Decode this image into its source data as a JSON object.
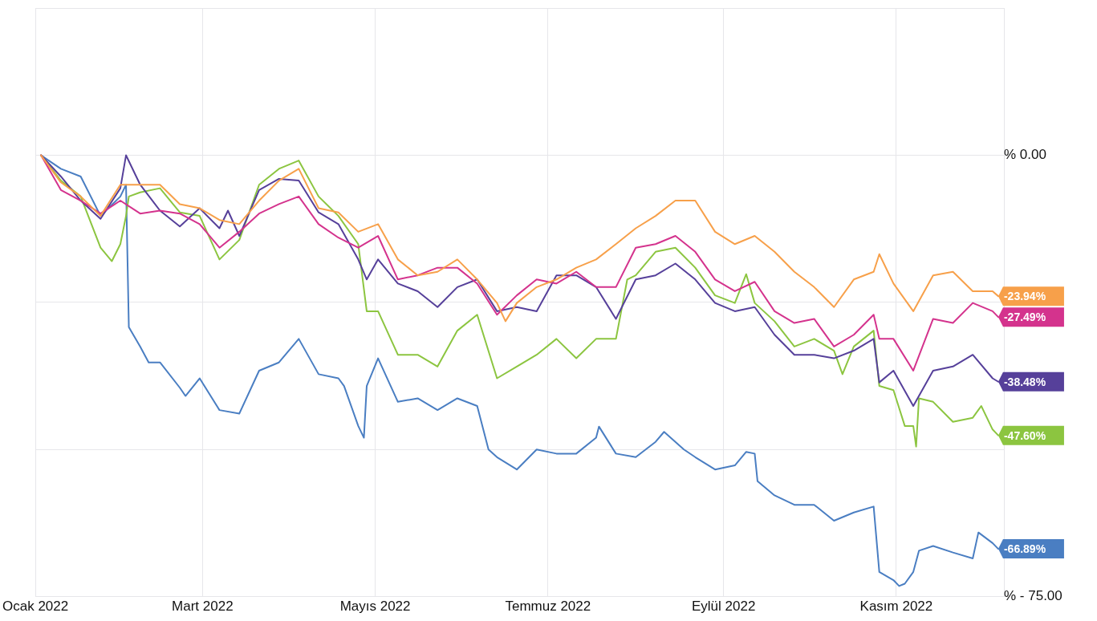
{
  "chart_data": {
    "type": "line",
    "xlim": [
      "2022-01-01",
      "2022-12-09"
    ],
    "ylim": [
      -75,
      25
    ],
    "xticks": [
      {
        "value": "2022-01-01",
        "label": "Ocak 2022"
      },
      {
        "value": "2022-03-01",
        "label": "Mart 2022"
      },
      {
        "value": "2022-05-01",
        "label": "Mayıs 2022"
      },
      {
        "value": "2022-07-01",
        "label": "Temmuz 2022"
      },
      {
        "value": "2022-09-01",
        "label": "Eylül 2022"
      },
      {
        "value": "2022-11-01",
        "label": "Kasım 2022"
      }
    ],
    "yticks": [
      {
        "value": 25,
        "label": null
      },
      {
        "value": 0,
        "label": "% 0.00"
      },
      {
        "value": -25,
        "label": null
      },
      {
        "value": -50,
        "label": null
      },
      {
        "value": -75,
        "label": "% - 75.00"
      }
    ],
    "grid": true,
    "legend": false,
    "marker": "none",
    "line_style": "solid",
    "series": [
      {
        "color": "#f7a04a",
        "x": [
          "2022-01-03",
          "2022-01-10",
          "2022-01-17",
          "2022-01-24",
          "2022-01-31",
          "2022-02-07",
          "2022-02-14",
          "2022-02-21",
          "2022-02-28",
          "2022-03-07",
          "2022-03-14",
          "2022-03-21",
          "2022-03-28",
          "2022-04-04",
          "2022-04-11",
          "2022-04-18",
          "2022-04-25",
          "2022-05-02",
          "2022-05-09",
          "2022-05-16",
          "2022-05-23",
          "2022-05-30",
          "2022-06-06",
          "2022-06-13",
          "2022-06-16",
          "2022-06-20",
          "2022-06-27",
          "2022-07-04",
          "2022-07-11",
          "2022-07-18",
          "2022-07-25",
          "2022-08-01",
          "2022-08-08",
          "2022-08-15",
          "2022-08-22",
          "2022-08-29",
          "2022-09-05",
          "2022-09-12",
          "2022-09-19",
          "2022-09-26",
          "2022-10-03",
          "2022-10-10",
          "2022-10-17",
          "2022-10-24",
          "2022-10-26",
          "2022-10-31",
          "2022-11-07",
          "2022-11-14",
          "2022-11-21",
          "2022-11-28",
          "2022-12-05",
          "2022-12-07"
        ],
        "values": [
          0,
          -4.6,
          -7.0,
          -10.3,
          -5.0,
          -5.0,
          -5.0,
          -8.3,
          -9.0,
          -11.0,
          -11.7,
          -7.7,
          -4.3,
          -2.3,
          -9.0,
          -9.7,
          -13.0,
          -11.7,
          -17.7,
          -20.4,
          -19.8,
          -17.7,
          -21.1,
          -25.1,
          -28.2,
          -25.1,
          -22.4,
          -21.1,
          -19.1,
          -17.7,
          -15.1,
          -12.4,
          -10.3,
          -7.7,
          -7.7,
          -13.0,
          -15.1,
          -13.7,
          -16.4,
          -19.8,
          -22.4,
          -25.8,
          -21.1,
          -19.8,
          -16.8,
          -21.8,
          -26.5,
          -20.4,
          -19.8,
          -23.1,
          -23.1,
          -23.94
        ],
        "value_labels": [
          null,
          null,
          null,
          null,
          null,
          null,
          null,
          null,
          null,
          null,
          null,
          null,
          null,
          null,
          null,
          null,
          null,
          null,
          null,
          null,
          null,
          null,
          null,
          null,
          null,
          null,
          null,
          null,
          null,
          null,
          null,
          null,
          null,
          null,
          null,
          null,
          null,
          null,
          null,
          null,
          null,
          null,
          null,
          null,
          null,
          null,
          null,
          null,
          null,
          null,
          null,
          "-23.94%"
        ]
      },
      {
        "color": "#d4338d",
        "x": [
          "2022-01-03",
          "2022-01-10",
          "2022-01-17",
          "2022-01-24",
          "2022-01-31",
          "2022-02-07",
          "2022-02-14",
          "2022-02-21",
          "2022-02-28",
          "2022-03-07",
          "2022-03-14",
          "2022-03-21",
          "2022-03-28",
          "2022-04-04",
          "2022-04-11",
          "2022-04-18",
          "2022-04-25",
          "2022-05-02",
          "2022-05-09",
          "2022-05-16",
          "2022-05-23",
          "2022-05-30",
          "2022-06-06",
          "2022-06-13",
          "2022-06-20",
          "2022-06-27",
          "2022-07-04",
          "2022-07-11",
          "2022-07-18",
          "2022-07-25",
          "2022-08-01",
          "2022-08-08",
          "2022-08-15",
          "2022-08-22",
          "2022-08-29",
          "2022-09-05",
          "2022-09-12",
          "2022-09-19",
          "2022-09-26",
          "2022-10-03",
          "2022-10-10",
          "2022-10-17",
          "2022-10-24",
          "2022-10-26",
          "2022-10-31",
          "2022-11-07",
          "2022-11-14",
          "2022-11-21",
          "2022-11-28",
          "2022-12-05",
          "2022-12-07"
        ],
        "values": [
          0,
          -5.9,
          -7.7,
          -9.9,
          -7.7,
          -9.9,
          -9.4,
          -9.9,
          -11.7,
          -15.7,
          -13.0,
          -9.9,
          -8.3,
          -7.0,
          -11.7,
          -14.0,
          -15.7,
          -13.7,
          -21.1,
          -20.4,
          -19.1,
          -19.1,
          -21.8,
          -27.1,
          -23.8,
          -21.1,
          -21.8,
          -19.8,
          -22.4,
          -22.4,
          -15.7,
          -15.1,
          -13.7,
          -16.4,
          -21.1,
          -23.1,
          -21.5,
          -26.5,
          -28.5,
          -27.8,
          -32.5,
          -30.5,
          -27.1,
          -31.2,
          -31.2,
          -36.6,
          -27.8,
          -28.5,
          -25.1,
          -26.5,
          -27.49
        ],
        "value_labels": [
          null,
          null,
          null,
          null,
          null,
          null,
          null,
          null,
          null,
          null,
          null,
          null,
          null,
          null,
          null,
          null,
          null,
          null,
          null,
          null,
          null,
          null,
          null,
          null,
          null,
          null,
          null,
          null,
          null,
          null,
          null,
          null,
          null,
          null,
          null,
          null,
          null,
          null,
          null,
          null,
          null,
          null,
          null,
          null,
          null,
          null,
          null,
          null,
          null,
          null,
          "-27.49%"
        ]
      },
      {
        "color": "#56409a",
        "x": [
          "2022-01-03",
          "2022-01-10",
          "2022-01-17",
          "2022-01-24",
          "2022-01-31",
          "2022-02-02",
          "2022-02-07",
          "2022-02-14",
          "2022-02-21",
          "2022-02-28",
          "2022-03-07",
          "2022-03-10",
          "2022-03-14",
          "2022-03-21",
          "2022-03-28",
          "2022-04-04",
          "2022-04-11",
          "2022-04-18",
          "2022-04-25",
          "2022-04-28",
          "2022-05-02",
          "2022-05-09",
          "2022-05-16",
          "2022-05-23",
          "2022-05-30",
          "2022-06-06",
          "2022-06-13",
          "2022-06-20",
          "2022-06-27",
          "2022-07-04",
          "2022-07-11",
          "2022-07-18",
          "2022-07-25",
          "2022-08-01",
          "2022-08-08",
          "2022-08-15",
          "2022-08-22",
          "2022-08-29",
          "2022-09-05",
          "2022-09-12",
          "2022-09-19",
          "2022-09-26",
          "2022-10-03",
          "2022-10-10",
          "2022-10-17",
          "2022-10-24",
          "2022-10-26",
          "2022-10-31",
          "2022-11-07",
          "2022-11-14",
          "2022-11-21",
          "2022-11-28",
          "2022-12-05",
          "2022-12-07"
        ],
        "values": [
          0,
          -3.6,
          -7.7,
          -10.8,
          -5.6,
          0,
          -5.0,
          -9.4,
          -12.1,
          -9.0,
          -12.4,
          -9.4,
          -13.7,
          -5.9,
          -4.0,
          -4.3,
          -9.7,
          -11.7,
          -17.7,
          -21.1,
          -17.7,
          -21.8,
          -23.1,
          -25.8,
          -22.4,
          -21.1,
          -26.5,
          -25.8,
          -26.5,
          -20.4,
          -20.4,
          -22.4,
          -27.8,
          -21.1,
          -20.4,
          -18.4,
          -21.1,
          -25.1,
          -26.5,
          -25.8,
          -30.5,
          -33.9,
          -33.9,
          -34.5,
          -33.2,
          -31.2,
          -38.6,
          -36.6,
          -42.6,
          -36.6,
          -35.9,
          -33.9,
          -37.9,
          -38.48
        ],
        "value_labels": [
          null,
          null,
          null,
          null,
          null,
          null,
          null,
          null,
          null,
          null,
          null,
          null,
          null,
          null,
          null,
          null,
          null,
          null,
          null,
          null,
          null,
          null,
          null,
          null,
          null,
          null,
          null,
          null,
          null,
          null,
          null,
          null,
          null,
          null,
          null,
          null,
          null,
          null,
          null,
          null,
          null,
          null,
          null,
          null,
          null,
          null,
          null,
          null,
          null,
          null,
          null,
          null,
          null,
          "-38.48%"
        ]
      },
      {
        "color": "#8cc540",
        "x": [
          "2022-01-03",
          "2022-01-10",
          "2022-01-17",
          "2022-01-24",
          "2022-01-28",
          "2022-01-31",
          "2022-02-02",
          "2022-02-03",
          "2022-02-07",
          "2022-02-14",
          "2022-02-21",
          "2022-02-28",
          "2022-03-07",
          "2022-03-14",
          "2022-03-21",
          "2022-03-28",
          "2022-04-04",
          "2022-04-11",
          "2022-04-18",
          "2022-04-25",
          "2022-04-28",
          "2022-05-02",
          "2022-05-09",
          "2022-05-16",
          "2022-05-23",
          "2022-05-30",
          "2022-06-06",
          "2022-06-13",
          "2022-06-20",
          "2022-06-27",
          "2022-07-04",
          "2022-07-11",
          "2022-07-18",
          "2022-07-25",
          "2022-07-29",
          "2022-08-01",
          "2022-08-08",
          "2022-08-15",
          "2022-08-22",
          "2022-08-29",
          "2022-09-05",
          "2022-09-09",
          "2022-09-12",
          "2022-09-19",
          "2022-09-26",
          "2022-10-03",
          "2022-10-10",
          "2022-10-13",
          "2022-10-17",
          "2022-10-24",
          "2022-10-26",
          "2022-10-31",
          "2022-11-04",
          "2022-11-07",
          "2022-11-08",
          "2022-11-09",
          "2022-11-14",
          "2022-11-21",
          "2022-11-28",
          "2022-12-01",
          "2022-12-05",
          "2022-12-07"
        ],
        "values": [
          0,
          -4.3,
          -7.0,
          -15.7,
          -18.0,
          -15.1,
          -10.3,
          -7.0,
          -6.3,
          -5.6,
          -9.7,
          -10.3,
          -17.7,
          -14.4,
          -5.0,
          -2.3,
          -0.9,
          -7.0,
          -10.3,
          -15.1,
          -26.5,
          -26.5,
          -33.9,
          -33.9,
          -35.9,
          -29.8,
          -27.1,
          -37.9,
          -35.9,
          -33.9,
          -31.2,
          -34.5,
          -31.2,
          -31.2,
          -21.1,
          -20.4,
          -16.4,
          -15.7,
          -19.1,
          -23.8,
          -25.1,
          -20.2,
          -25.1,
          -28.2,
          -32.5,
          -31.2,
          -33.2,
          -37.2,
          -32.5,
          -29.8,
          -39.2,
          -39.9,
          -46.0,
          -46.0,
          -49.5,
          -41.3,
          -41.9,
          -45.3,
          -44.6,
          -42.6,
          -46.6,
          -47.6
        ],
        "value_labels": [
          null,
          null,
          null,
          null,
          null,
          null,
          null,
          null,
          null,
          null,
          null,
          null,
          null,
          null,
          null,
          null,
          null,
          null,
          null,
          null,
          null,
          null,
          null,
          null,
          null,
          null,
          null,
          null,
          null,
          null,
          null,
          null,
          null,
          null,
          null,
          null,
          null,
          null,
          null,
          null,
          null,
          null,
          null,
          null,
          null,
          null,
          null,
          null,
          null,
          null,
          null,
          null,
          null,
          null,
          null,
          null,
          null,
          null,
          null,
          null,
          null,
          "-47.60%"
        ]
      },
      {
        "color": "#4a7ec2",
        "x": [
          "2022-01-03",
          "2022-01-10",
          "2022-01-17",
          "2022-01-24",
          "2022-01-31",
          "2022-02-02",
          "2022-02-03",
          "2022-02-07",
          "2022-02-10",
          "2022-02-14",
          "2022-02-21",
          "2022-02-23",
          "2022-02-28",
          "2022-03-07",
          "2022-03-14",
          "2022-03-21",
          "2022-03-28",
          "2022-04-04",
          "2022-04-11",
          "2022-04-18",
          "2022-04-20",
          "2022-04-25",
          "2022-04-27",
          "2022-04-28",
          "2022-05-02",
          "2022-05-09",
          "2022-05-16",
          "2022-05-23",
          "2022-05-30",
          "2022-06-06",
          "2022-06-10",
          "2022-06-13",
          "2022-06-20",
          "2022-06-27",
          "2022-07-04",
          "2022-07-11",
          "2022-07-18",
          "2022-07-19",
          "2022-07-25",
          "2022-08-01",
          "2022-08-08",
          "2022-08-11",
          "2022-08-18",
          "2022-08-22",
          "2022-08-29",
          "2022-09-05",
          "2022-09-09",
          "2022-09-12",
          "2022-09-13",
          "2022-09-19",
          "2022-09-26",
          "2022-10-03",
          "2022-10-10",
          "2022-10-17",
          "2022-10-24",
          "2022-10-26",
          "2022-10-31",
          "2022-11-02",
          "2022-11-04",
          "2022-11-07",
          "2022-11-09",
          "2022-11-14",
          "2022-11-21",
          "2022-11-28",
          "2022-11-30",
          "2022-12-05",
          "2022-12-07"
        ],
        "values": [
          0,
          -2.3,
          -3.6,
          -10.3,
          -7.0,
          -5.0,
          -29.2,
          -32.5,
          -35.2,
          -35.2,
          -39.5,
          -40.9,
          -37.9,
          -43.3,
          -43.9,
          -36.6,
          -35.2,
          -31.2,
          -37.2,
          -37.9,
          -39.2,
          -46.0,
          -48.0,
          -39.2,
          -34.5,
          -41.9,
          -41.3,
          -43.3,
          -41.3,
          -42.6,
          -50.0,
          -51.3,
          -53.4,
          -50.0,
          -50.7,
          -50.7,
          -48.0,
          -46.1,
          -50.7,
          -51.3,
          -48.7,
          -47.0,
          -50.0,
          -51.3,
          -53.4,
          -52.7,
          -50.4,
          -50.7,
          -55.4,
          -57.8,
          -59.4,
          -59.4,
          -62.1,
          -60.7,
          -59.7,
          -70.8,
          -72.2,
          -73.2,
          -72.8,
          -70.8,
          -67.2,
          -66.4,
          -67.5,
          -68.5,
          -64.1,
          -65.9,
          -66.89
        ],
        "value_labels": [
          null,
          null,
          null,
          null,
          null,
          null,
          null,
          null,
          null,
          null,
          null,
          null,
          null,
          null,
          null,
          null,
          null,
          null,
          null,
          null,
          null,
          null,
          null,
          null,
          null,
          null,
          null,
          null,
          null,
          null,
          null,
          null,
          null,
          null,
          null,
          null,
          null,
          null,
          null,
          null,
          null,
          null,
          null,
          null,
          null,
          null,
          null,
          null,
          null,
          null,
          null,
          null,
          null,
          null,
          null,
          null,
          null,
          null,
          null,
          null,
          null,
          null,
          null,
          null,
          null,
          null,
          "-66.89%"
        ]
      }
    ]
  }
}
